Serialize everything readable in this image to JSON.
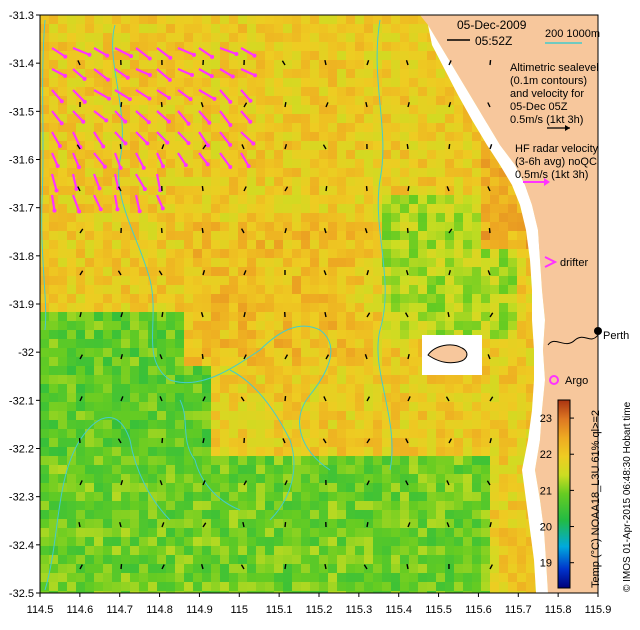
{
  "map": {
    "date": "05-Dec-2009",
    "time": "05:52Z",
    "lon_ticks": [
      "114.5",
      "114.6",
      "114.7",
      "114.8",
      "114.9",
      "115",
      "115.1",
      "115.2",
      "115.3",
      "115.4",
      "115.5",
      "115.6",
      "115.7",
      "115.8",
      "115.9"
    ],
    "lat_ticks": [
      "-31.3",
      "-31.4",
      "-31.5",
      "-31.6",
      "-31.7",
      "-31.8",
      "-31.9",
      "-32",
      "-32.1",
      "-32.2",
      "-32.3",
      "-32.4",
      "-32.5"
    ],
    "lon_range": [
      114.5,
      115.9
    ],
    "lat_range": [
      -32.5,
      -31.3
    ],
    "depth_legend": "200  1000m",
    "altimetry_lines": [
      "Altimetric sealevel",
      "(0.1m contours)",
      "and velocity for",
      "05-Dec 05Z",
      "0.5m/s (1kt 3h)"
    ],
    "hf_lines": [
      "HF radar velocity",
      "(3-6h avg) noQC",
      "0.5m/s (1kt 3h)"
    ],
    "drifter_label": "drifter",
    "argo_label": "Argo",
    "place_label": "Perth",
    "colorbar": {
      "title": "Temp (°C) NOAA18_L3U 61% ql>=2",
      "ticks": [
        "19",
        "20",
        "21",
        "22",
        "23"
      ],
      "range": [
        18.3,
        23.5
      ]
    },
    "credit": "© IMOS 01-Apr-2015 06:48:30 Hobart time",
    "colors": {
      "land": "#f7c79c",
      "bathymetry": "#44cccc",
      "hf_vectors": "#ff33ff",
      "no_data": "#ffffff"
    }
  }
}
